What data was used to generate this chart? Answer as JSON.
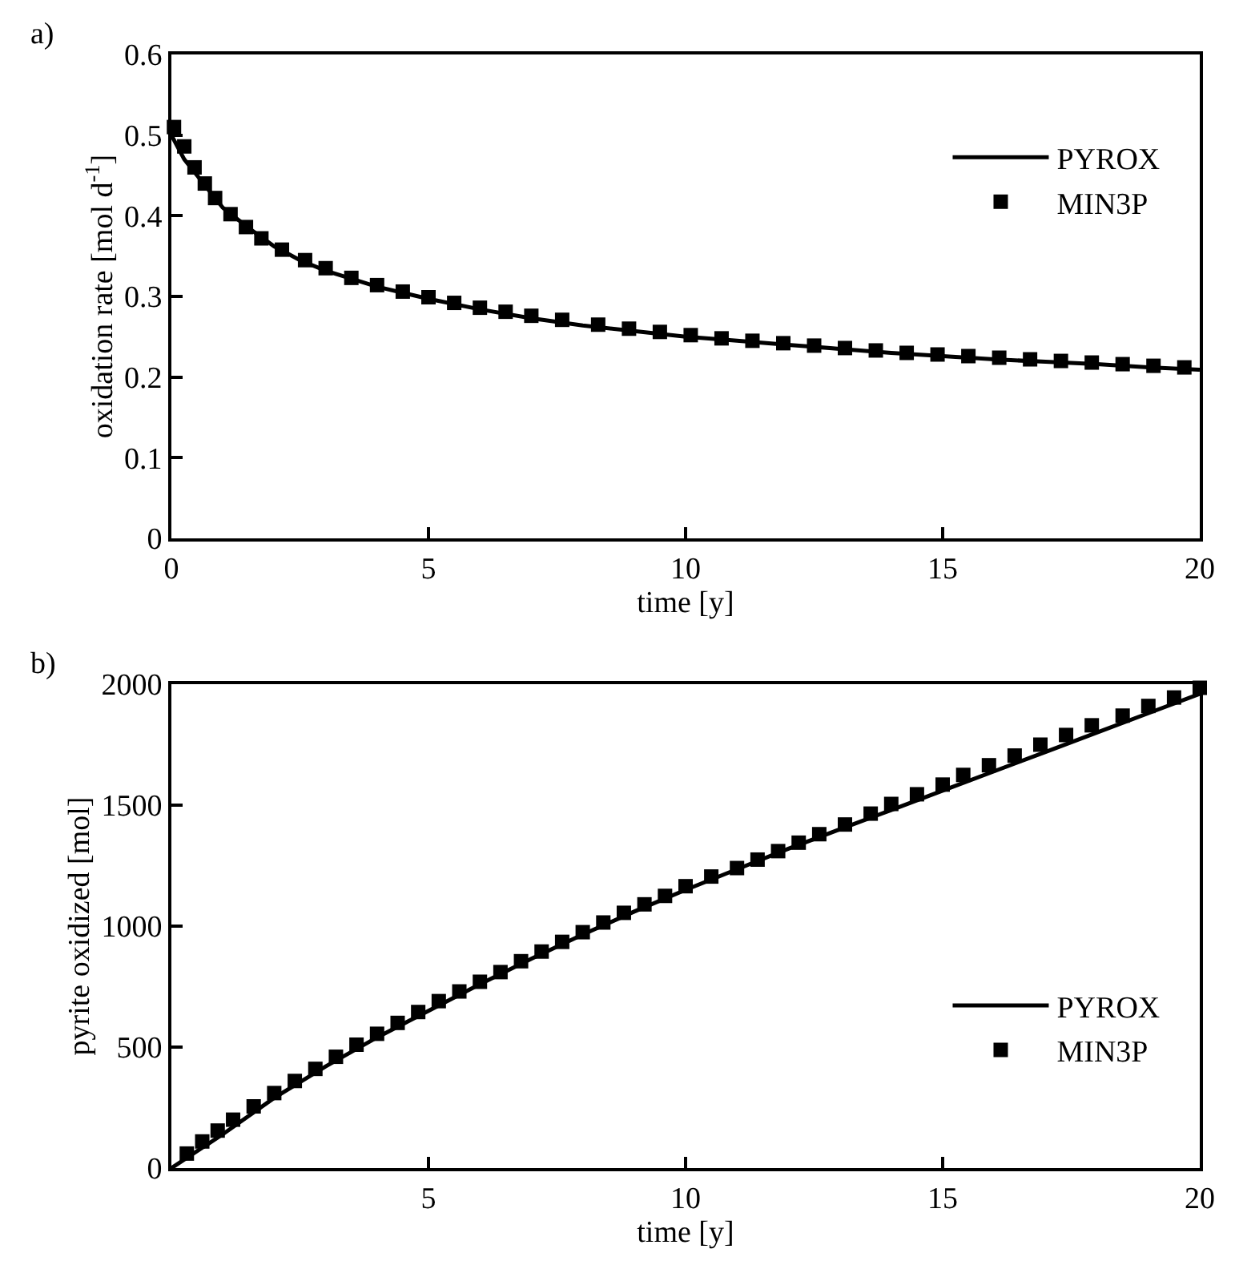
{
  "chart_data": [
    {
      "type": "line",
      "annotations": [
        "a)"
      ],
      "xlabel": "time [y]",
      "ylabel": "oxidation rate [mol d$^{-1}$]",
      "xlim": [
        0,
        20
      ],
      "ylim": [
        0,
        0.6
      ],
      "xticks": [
        0,
        5,
        10,
        15,
        20
      ],
      "yticks": [
        0,
        0.1,
        0.2,
        0.3,
        0.4,
        0.5,
        0.6
      ],
      "grid": false,
      "legend": "top right",
      "series": [
        {
          "name": "PYROX",
          "color": "#000000",
          "line_style": "solid",
          "marker": "none",
          "x": [
            0,
            0.25,
            0.5,
            0.75,
            1,
            1.5,
            2,
            2.5,
            3,
            4,
            5,
            6,
            7,
            8,
            9,
            10,
            11,
            12,
            13,
            14,
            15,
            16,
            17,
            18,
            19,
            20
          ],
          "values": [
            0.5,
            0.47,
            0.45,
            0.43,
            0.41,
            0.385,
            0.362,
            0.345,
            0.332,
            0.312,
            0.297,
            0.284,
            0.273,
            0.264,
            0.257,
            0.25,
            0.245,
            0.24,
            0.235,
            0.23,
            0.226,
            0.222,
            0.219,
            0.216,
            0.212,
            0.209
          ]
        },
        {
          "name": "MIN3P",
          "type": "scatter",
          "color": "#000000",
          "marker": "square",
          "x": [
            0.05,
            0.25,
            0.45,
            0.65,
            0.85,
            1.15,
            1.45,
            1.75,
            2.15,
            2.6,
            3.0,
            3.5,
            4.0,
            4.5,
            5.0,
            5.5,
            6.0,
            6.5,
            7.0,
            7.6,
            8.3,
            8.9,
            9.5,
            10.1,
            10.7,
            11.3,
            11.9,
            12.5,
            13.1,
            13.7,
            14.3,
            14.9,
            15.5,
            16.1,
            16.7,
            17.3,
            17.9,
            18.5,
            19.1,
            19.7
          ],
          "values": [
            0.51,
            0.486,
            0.46,
            0.44,
            0.422,
            0.402,
            0.386,
            0.372,
            0.358,
            0.345,
            0.335,
            0.323,
            0.314,
            0.306,
            0.299,
            0.292,
            0.286,
            0.281,
            0.276,
            0.271,
            0.265,
            0.26,
            0.256,
            0.252,
            0.248,
            0.245,
            0.242,
            0.239,
            0.236,
            0.233,
            0.23,
            0.228,
            0.226,
            0.224,
            0.222,
            0.22,
            0.218,
            0.216,
            0.214,
            0.212
          ]
        }
      ]
    },
    {
      "type": "line",
      "annotations": [
        "b)"
      ],
      "xlabel": "time [y]",
      "ylabel": "pyrite oxidized [mol]",
      "xlim": [
        0,
        20
      ],
      "ylim": [
        0,
        2000
      ],
      "xticks": [
        5,
        10,
        15,
        20
      ],
      "yticks": [
        0,
        500,
        1000,
        1500,
        2000
      ],
      "grid": false,
      "legend": "bottom right",
      "series": [
        {
          "name": "PYROX",
          "color": "#000000",
          "line_style": "solid",
          "marker": "none",
          "x": [
            0,
            1,
            2,
            3,
            4,
            5,
            6,
            7,
            8,
            9,
            10,
            11,
            12,
            13,
            14,
            15,
            16,
            17,
            18,
            19,
            20
          ],
          "values": [
            0,
            140,
            290,
            420,
            540,
            650,
            760,
            865,
            965,
            1060,
            1150,
            1235,
            1320,
            1400,
            1480,
            1560,
            1640,
            1720,
            1800,
            1880,
            1960
          ]
        },
        {
          "name": "MIN3P",
          "type": "scatter",
          "color": "#000000",
          "marker": "square",
          "x": [
            0.3,
            0.6,
            0.9,
            1.2,
            1.6,
            2.0,
            2.4,
            2.8,
            3.2,
            3.6,
            4.0,
            4.4,
            4.8,
            5.2,
            5.6,
            6.0,
            6.4,
            6.8,
            7.2,
            7.6,
            8.0,
            8.4,
            8.8,
            9.2,
            9.6,
            10.0,
            10.5,
            11.0,
            11.4,
            11.8,
            12.2,
            12.6,
            13.1,
            13.6,
            14.0,
            14.5,
            15.0,
            15.4,
            15.9,
            16.4,
            16.9,
            17.4,
            17.9,
            18.5,
            19.0,
            19.5,
            20.0
          ],
          "values": [
            60,
            110,
            155,
            200,
            255,
            310,
            360,
            410,
            460,
            510,
            555,
            600,
            645,
            690,
            730,
            770,
            810,
            855,
            895,
            935,
            975,
            1015,
            1055,
            1090,
            1125,
            1165,
            1205,
            1240,
            1275,
            1310,
            1345,
            1380,
            1420,
            1465,
            1505,
            1545,
            1585,
            1625,
            1665,
            1705,
            1750,
            1790,
            1830,
            1870,
            1910,
            1945,
            1985
          ]
        }
      ]
    }
  ]
}
